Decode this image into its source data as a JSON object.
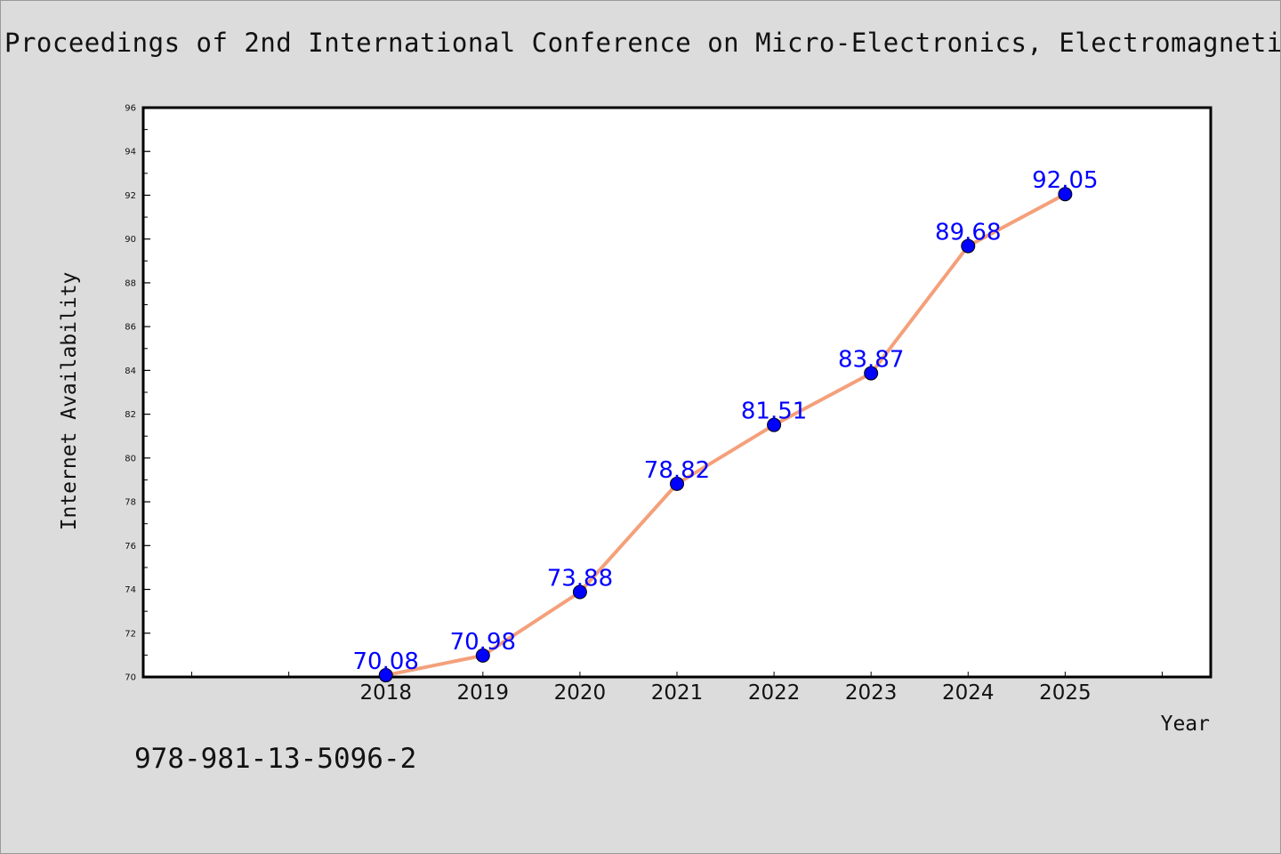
{
  "header": {
    "title": "Proceedings of 2nd International Conference on Micro-Electronics, Electromagneti"
  },
  "footer": {
    "isbn": "978-981-13-5096-2"
  },
  "colors": {
    "background": "#dcdcdc",
    "plot_area": "#ffffff",
    "line": "#f4a07a",
    "marker": "#0000ff",
    "data_label": "#0000ff"
  },
  "chart_data": {
    "type": "line",
    "title": "",
    "xlabel": "Year",
    "ylabel": "Internet Availability",
    "categories": [
      "2018",
      "2019",
      "2020",
      "2021",
      "2022",
      "2023",
      "2024",
      "2025"
    ],
    "x_tick_labels": [
      "2018",
      "2019",
      "2020",
      "2021",
      "2022",
      "2023",
      "2024",
      "2025"
    ],
    "series": [
      {
        "values": [
          70.08,
          70.98,
          73.88,
          78.82,
          81.51,
          83.87,
          89.68,
          92.05
        ],
        "data_labels": [
          "70.08",
          "70.98",
          "73.88",
          "78.82",
          "81.51",
          "83.87",
          "89.68",
          "92.05"
        ]
      }
    ],
    "xlim": [
      2015.5,
      2026.5
    ],
    "ylim": [
      70,
      96
    ],
    "y_ticks": [
      70,
      72,
      74,
      76,
      78,
      80,
      82,
      84,
      86,
      88,
      90,
      92,
      94,
      96
    ],
    "y_tick_labels": [
      "70",
      "72",
      "74",
      "76",
      "78",
      "80",
      "82",
      "84",
      "86",
      "88",
      "90",
      "92",
      "94",
      "96"
    ],
    "grid": false,
    "legend": "none"
  }
}
